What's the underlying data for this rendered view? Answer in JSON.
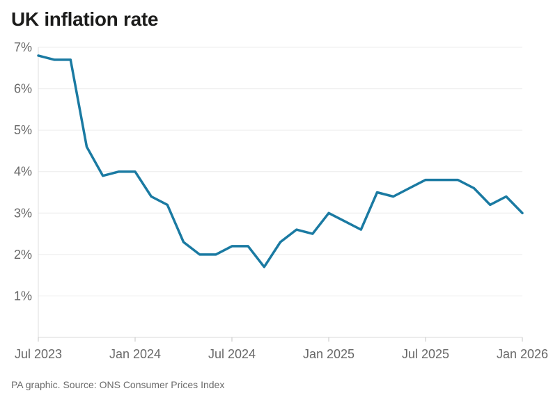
{
  "page": {
    "title": "UK inflation rate",
    "footer": "PA graphic. Source: ONS Consumer Prices Index"
  },
  "colors": {
    "line": "#1a7aa2",
    "grid": "#ececec",
    "x_axis": "#d9d9d9",
    "y_axis": "#dedede",
    "tick": "#c4c4c4",
    "axis_label": "#686868",
    "title": "#1c1c1b",
    "footer_text": "#6b6b6b",
    "background": "#ffffff"
  },
  "chart_data": {
    "type": "line",
    "title": "UK inflation rate",
    "x": [
      "Jul 2023",
      "Aug 2023",
      "Sep 2023",
      "Oct 2023",
      "Nov 2023",
      "Dec 2023",
      "Jan 2024",
      "Feb 2024",
      "Mar 2024",
      "Apr 2024",
      "May 2024",
      "Jun 2024",
      "Jul 2024",
      "Aug 2024",
      "Sep 2024",
      "Oct 2024",
      "Nov 2024",
      "Dec 2024",
      "Jan 2025",
      "Feb 2025",
      "Mar 2025",
      "Apr 2025",
      "May 2025",
      "Jun 2025",
      "Jul 2025",
      "Aug 2025",
      "Sep 2025",
      "Oct 2025",
      "Nov 2025",
      "Dec 2025",
      "Jan 2026"
    ],
    "values": [
      6.8,
      6.7,
      6.7,
      4.6,
      3.9,
      4.0,
      4.0,
      3.4,
      3.2,
      2.3,
      2.0,
      2.0,
      2.2,
      2.2,
      1.7,
      2.3,
      2.6,
      2.5,
      3.0,
      2.8,
      2.6,
      3.5,
      3.4,
      3.6,
      3.8,
      3.8,
      3.8,
      3.6,
      3.2,
      3.4,
      3.0
    ],
    "series_name": "UK inflation rate (CPI, %)",
    "xlabel": "",
    "ylabel": "",
    "ylim": [
      0,
      7
    ],
    "y_ticks": [
      1,
      2,
      3,
      4,
      5,
      6,
      7
    ],
    "y_tick_suffix": "%",
    "x_ticks": [
      "Jul 2023",
      "Jan 2024",
      "Jul 2024",
      "Jan 2025",
      "Jul 2025",
      "Jan 2026"
    ],
    "grid": true,
    "legend": false,
    "source": "PA graphic. Source: ONS Consumer Prices Index"
  }
}
